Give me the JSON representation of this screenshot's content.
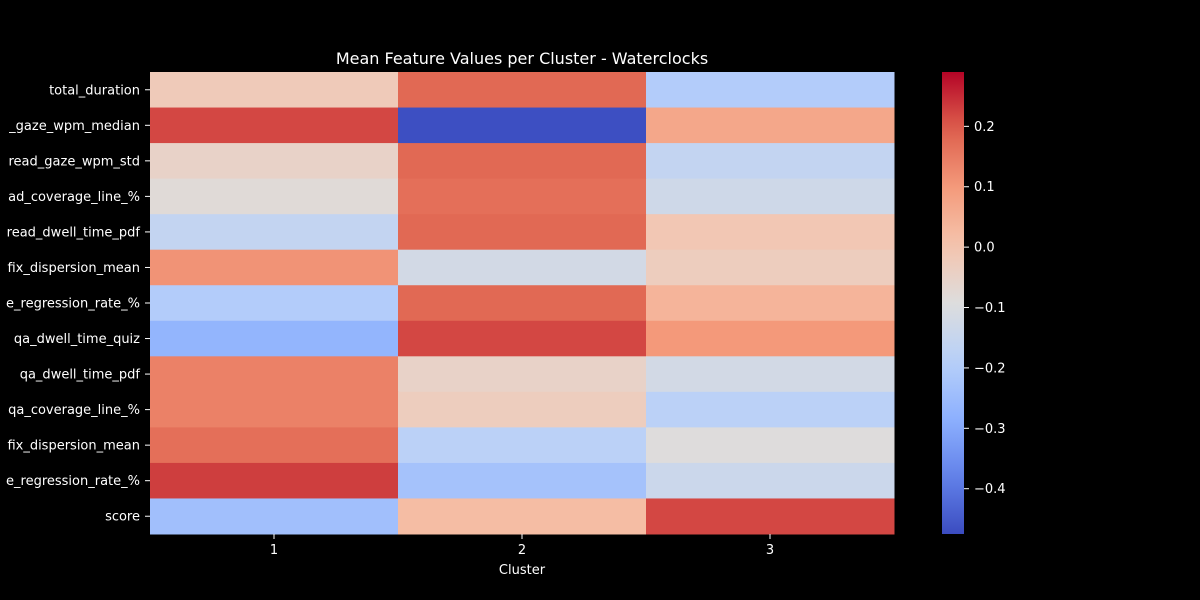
{
  "chart_data": {
    "type": "heatmap",
    "title": "Mean Feature Values per Cluster - Waterclocks",
    "xlabel": "Cluster",
    "ylabel": "",
    "x_categories": [
      "1",
      "2",
      "3"
    ],
    "y_categories": [
      "total_duration",
      "read_gaze_wpm_median",
      "read_gaze_wpm_std",
      "read_coverage_line_%",
      "read_dwell_time_pdf",
      "read_fix_dispersion_mean",
      "read_line_regression_rate_%",
      "qa_dwell_time_quiz",
      "qa_dwell_time_pdf",
      "qa_coverage_line_%",
      "qa_fix_dispersion_mean",
      "qa_line_regression_rate_%",
      "score"
    ],
    "y_tick_labels_visible": [
      "total_duration",
      "_gaze_wpm_median",
      "read_gaze_wpm_std",
      "ad_coverage_line_%",
      "read_dwell_time_pdf",
      "fix_dispersion_mean",
      "e_regression_rate_%",
      "qa_dwell_time_quiz",
      "qa_dwell_time_pdf",
      "qa_coverage_line_%",
      "fix_dispersion_mean",
      "e_regression_rate_%",
      "score"
    ],
    "values": [
      [
        -0.02,
        0.18,
        -0.2
      ],
      [
        0.22,
        -0.47,
        0.07
      ],
      [
        -0.05,
        0.18,
        -0.16
      ],
      [
        -0.08,
        0.17,
        -0.13
      ],
      [
        -0.16,
        0.18,
        -0.01
      ],
      [
        0.11,
        -0.12,
        -0.03
      ],
      [
        -0.2,
        0.18,
        0.04
      ],
      [
        -0.27,
        0.22,
        0.1
      ],
      [
        0.14,
        -0.05,
        -0.12
      ],
      [
        0.14,
        -0.03,
        -0.18
      ],
      [
        0.17,
        -0.18,
        -0.09
      ],
      [
        0.23,
        -0.23,
        -0.14
      ],
      [
        -0.24,
        0.02,
        0.22
      ]
    ],
    "colormap": "coolwarm",
    "vmin": -0.475,
    "vmax": 0.29,
    "colorbar_ticks": [
      0.2,
      0.1,
      0.0,
      -0.1,
      -0.2,
      -0.3,
      -0.4
    ],
    "colorbar_tick_labels": [
      "0.2",
      "0.1",
      "0.0",
      "−0.1",
      "−0.2",
      "−0.3",
      "−0.4"
    ],
    "grid": false,
    "background": "#000000",
    "text_color": "#ffffff"
  }
}
